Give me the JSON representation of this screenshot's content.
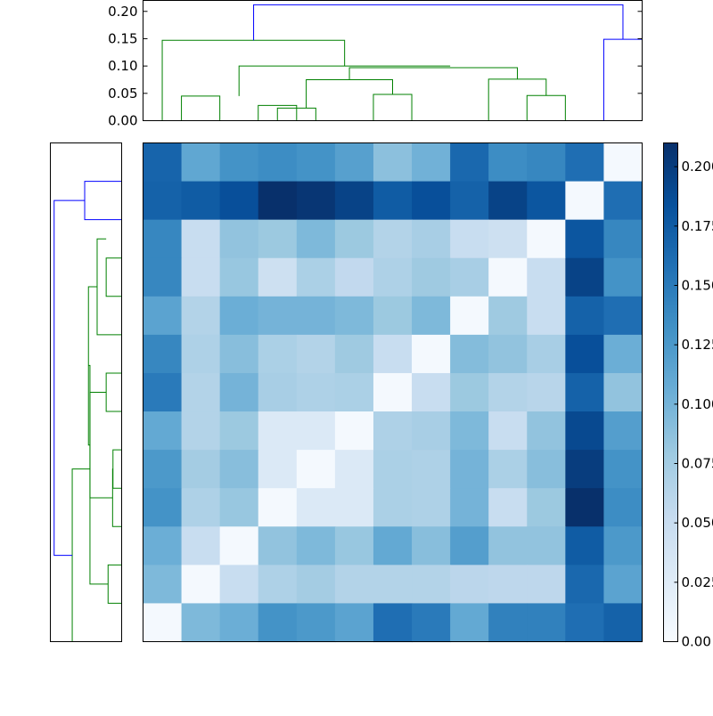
{
  "chart_data": {
    "type": "heatmap",
    "title": "",
    "xlabel": "",
    "ylabel": "",
    "matrix": [
      [
        0.168,
        0.112,
        0.13,
        0.135,
        0.13,
        0.118,
        0.088,
        0.102,
        0.165,
        0.135,
        0.14,
        0.16,
        0.003
      ],
      [
        0.17,
        0.175,
        0.185,
        0.21,
        0.205,
        0.195,
        0.175,
        0.185,
        0.17,
        0.195,
        0.18,
        0.003,
        0.16
      ],
      [
        0.14,
        0.05,
        0.085,
        0.08,
        0.095,
        0.08,
        0.065,
        0.072,
        0.05,
        0.045,
        0.003,
        0.18,
        0.14
      ],
      [
        0.14,
        0.05,
        0.082,
        0.045,
        0.07,
        0.055,
        0.068,
        0.078,
        0.072,
        0.003,
        0.05,
        0.195,
        0.13
      ],
      [
        0.115,
        0.065,
        0.105,
        0.1,
        0.1,
        0.095,
        0.08,
        0.095,
        0.003,
        0.078,
        0.05,
        0.17,
        0.16
      ],
      [
        0.14,
        0.068,
        0.09,
        0.07,
        0.065,
        0.078,
        0.05,
        0.003,
        0.092,
        0.085,
        0.072,
        0.185,
        0.105
      ],
      [
        0.15,
        0.065,
        0.1,
        0.072,
        0.068,
        0.07,
        0.003,
        0.05,
        0.08,
        0.065,
        0.062,
        0.17,
        0.085
      ],
      [
        0.11,
        0.065,
        0.08,
        0.03,
        0.03,
        0.003,
        0.068,
        0.072,
        0.095,
        0.05,
        0.085,
        0.19,
        0.12
      ],
      [
        0.125,
        0.075,
        0.09,
        0.03,
        0.003,
        0.03,
        0.07,
        0.068,
        0.1,
        0.07,
        0.09,
        0.2,
        0.13
      ],
      [
        0.13,
        0.068,
        0.082,
        0.003,
        0.03,
        0.03,
        0.07,
        0.068,
        0.1,
        0.05,
        0.08,
        0.21,
        0.135
      ],
      [
        0.105,
        0.05,
        0.003,
        0.085,
        0.095,
        0.082,
        0.11,
        0.09,
        0.12,
        0.085,
        0.085,
        0.175,
        0.125
      ],
      [
        0.095,
        0.003,
        0.05,
        0.068,
        0.075,
        0.065,
        0.065,
        0.065,
        0.06,
        0.058,
        0.058,
        0.165,
        0.115
      ],
      [
        0.003,
        0.095,
        0.105,
        0.13,
        0.125,
        0.115,
        0.16,
        0.15,
        0.11,
        0.145,
        0.145,
        0.16,
        0.17
      ]
    ],
    "colormap": "Blues",
    "vmin": 0,
    "vmax": 0.21,
    "colorbar_ticks": [
      "0.00",
      "0.025",
      "0.050",
      "0.075",
      "0.100",
      "0.125",
      "0.150",
      "0.175",
      "0.200"
    ],
    "colorbar_tick_values": [
      0,
      0.025,
      0.05,
      0.075,
      0.1,
      0.125,
      0.15,
      0.175,
      0.2
    ],
    "top_dendrogram": {
      "axis_ticks": [
        "0.00",
        "0.05",
        "0.10",
        "0.15",
        "0.20"
      ],
      "axis_tick_values": [
        0,
        0.05,
        0.1,
        0.15,
        0.2
      ],
      "ylim": [
        0,
        0.22
      ],
      "links": [
        {
          "x": [
            0.5,
            0.5,
            1.5,
            1.5
          ],
          "y": [
            0,
            0.045,
            0.045,
            0
          ],
          "color": "#008000"
        },
        {
          "x": [
            3.0,
            3.0,
            4.0,
            4.0
          ],
          "y": [
            0,
            0.023,
            0.023,
            0
          ],
          "color": "#008000"
        },
        {
          "x": [
            2.5,
            2.5,
            3.5,
            3.5
          ],
          "y": [
            0,
            0.028,
            0.028,
            0
          ],
          "color": "#008000"
        },
        {
          "x": [
            5.5,
            5.5,
            6.5,
            6.5
          ],
          "y": [
            0,
            0.048,
            0.048,
            0
          ],
          "color": "#008000"
        },
        {
          "x": [
            3.75,
            3.75,
            6.0,
            6.0
          ],
          "y": [
            0.023,
            0.075,
            0.075,
            0.048
          ],
          "color": "#008000"
        },
        {
          "x": [
            9.5,
            9.5,
            10.5,
            10.5
          ],
          "y": [
            0,
            0.046,
            0.046,
            0
          ],
          "color": "#008000"
        },
        {
          "x": [
            8.5,
            8.5,
            10.0,
            10.0
          ],
          "y": [
            0,
            0.076,
            0.076,
            0.046
          ],
          "color": "#008000"
        },
        {
          "x": [
            4.875,
            4.875,
            9.25,
            9.25
          ],
          "y": [
            0.075,
            0.097,
            0.097,
            0.076
          ],
          "color": "#008000"
        },
        {
          "x": [
            2.0,
            2.0,
            7.5,
            7.5
          ],
          "y": [
            0.045,
            0.1,
            0.1,
            0.1
          ],
          "color": "#008000"
        },
        {
          "x": [
            0.0,
            0.0,
            4.75,
            4.75
          ],
          "y": [
            0,
            0.147,
            0.147,
            0.1
          ],
          "color": "#008000"
        },
        {
          "x": [
            11.5,
            11.5,
            12.5,
            12.5
          ],
          "y": [
            0,
            0.149,
            0.149,
            0
          ],
          "color": "#0000ff"
        },
        {
          "x": [
            2.38,
            2.38,
            12.0,
            12.0
          ],
          "y": [
            0.147,
            0.212,
            0.212,
            0.149
          ],
          "color": "#0000ff"
        }
      ]
    },
    "left_dendrogram": {
      "links": [
        {
          "y": [
            0.5,
            0.5,
            1.5,
            1.5
          ],
          "x": [
            0,
            0.098,
            0.098,
            0
          ],
          "color": "#0000ff"
        },
        {
          "y": [
            2.5,
            2.5,
            3.5,
            3.5
          ],
          "x": [
            0,
            0.041,
            0.041,
            0
          ],
          "color": "#008000"
        },
        {
          "y": [
            2.0,
            2.0,
            4.5,
            4.5
          ],
          "x": [
            0.041,
            0.065,
            0.065,
            0
          ],
          "color": "#008000"
        },
        {
          "y": [
            5.5,
            5.5,
            6.5,
            6.5
          ],
          "x": [
            0,
            0.041,
            0.041,
            0
          ],
          "color": "#008000"
        },
        {
          "y": [
            7.5,
            7.5,
            8.5,
            8.5
          ],
          "x": [
            0,
            0.023,
            0.023,
            0
          ],
          "color": "#008000"
        },
        {
          "y": [
            8.0,
            8.0,
            9.5,
            9.5
          ],
          "x": [
            0.023,
            0.024,
            0.024,
            0
          ],
          "color": "#008000"
        },
        {
          "y": [
            6.0,
            6.0,
            8.75,
            8.75
          ],
          "x": [
            0.041,
            0.084,
            0.084,
            0.024
          ],
          "color": "#008000"
        },
        {
          "y": [
            3.25,
            3.25,
            7.375,
            7.375
          ],
          "x": [
            0.065,
            0.088,
            0.088,
            0.084
          ],
          "color": "#008000"
        },
        {
          "y": [
            10.5,
            10.5,
            11.5,
            11.5
          ],
          "x": [
            0,
            0.036,
            0.036,
            0
          ],
          "color": "#008000"
        },
        {
          "y": [
            5.3,
            5.3,
            11.0,
            11.0
          ],
          "x": [
            0.088,
            0.084,
            0.084,
            0.036
          ],
          "color": "#008000"
        },
        {
          "y": [
            8.0,
            8.0,
            12.5,
            12.5
          ],
          "x": [
            0.084,
            0.131,
            0.131,
            0
          ],
          "color": "#008000"
        },
        {
          "y": [
            1.0,
            1.0,
            10.25,
            10.25
          ],
          "x": [
            0.098,
            0.179,
            0.179,
            0.131
          ],
          "color": "#0000ff"
        }
      ],
      "xlim": [
        0,
        0.189
      ]
    }
  }
}
